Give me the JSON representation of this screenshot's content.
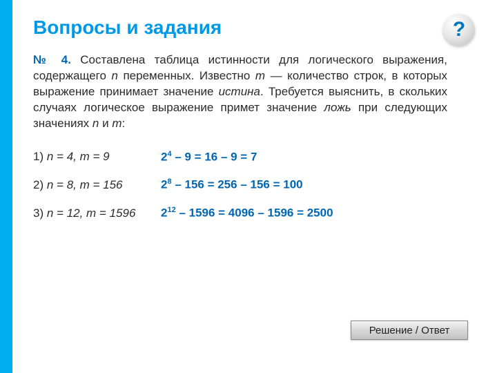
{
  "colors": {
    "accent": "#00aeef",
    "title": "#0099e5",
    "emphasis": "#0066b3",
    "text": "#2b2b2b",
    "background": "#ffffff"
  },
  "help_icon": {
    "symbol": "?"
  },
  "title": "Вопросы и задания",
  "problem": {
    "number_label": "№ 4.",
    "text_parts": [
      "Составлена таблица истинности для логического выражения, содержащего ",
      "n",
      " переменных. Известно ",
      "m",
      " — количество строк, в которых выражение принимает значение ",
      "истина",
      ". Требуется выяснить, в скольких случаях логическое выражение примет значение ",
      "ложь",
      " при следующих значениях ",
      "n",
      " и ",
      "m",
      ":"
    ]
  },
  "items": [
    {
      "label_prefix": "1)",
      "given": "n = 4, m = 9",
      "exp_base": "2",
      "exp_pow": "4",
      "calc_tail": " – 9 = 16 – 9 = 7"
    },
    {
      "label_prefix": "2)",
      "given": "n = 8, m = 156",
      "exp_base": "2",
      "exp_pow": "8",
      "calc_tail": " – 156 = 256 – 156 = 100"
    },
    {
      "label_prefix": "3)",
      "given": "n = 12, m = 1596",
      "exp_base": "2",
      "exp_pow": "12",
      "calc_tail": " – 1596 = 4096 – 1596 = 2500"
    }
  ],
  "button_label": "Решение / Ответ"
}
